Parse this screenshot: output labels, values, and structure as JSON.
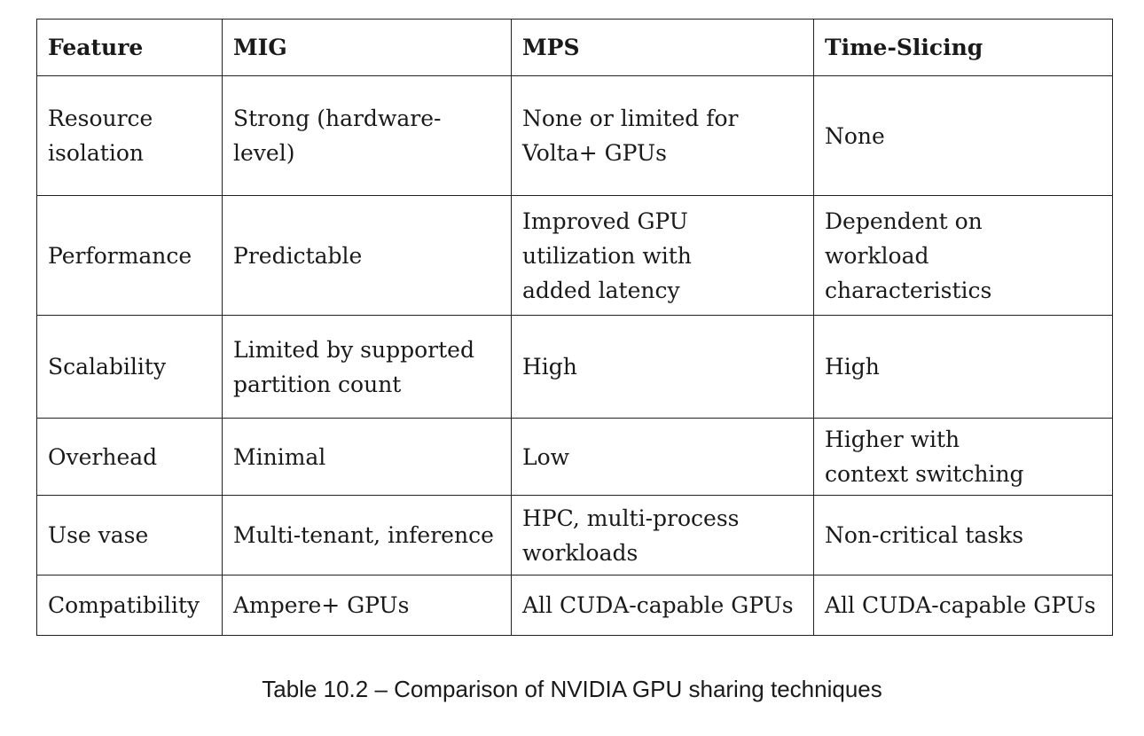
{
  "table": {
    "headers": [
      "Feature",
      "MIG",
      "MPS",
      "Time-Slicing"
    ],
    "rows": [
      [
        "Resource\nisolation",
        "Strong (hardware-level)",
        "None or limited for\nVolta+ GPUs",
        "None"
      ],
      [
        "Performance",
        "Predictable",
        "Improved GPU\nutilization with\nadded latency",
        "Dependent on\nworkload characteristics"
      ],
      [
        "Scalability",
        "Limited by supported\npartition count",
        "High",
        "High"
      ],
      [
        "Overhead",
        "Minimal",
        "Low",
        "Higher with\ncontext switching"
      ],
      [
        "Use vase",
        "Multi-tenant, inference",
        "HPC, multi-process\nworkloads",
        "Non-critical tasks"
      ],
      [
        "Compatibility",
        "Ampere+ GPUs",
        "All CUDA-capable GPUs",
        "All CUDA-capable GPUs"
      ]
    ]
  },
  "caption": "Table 10.2 – Comparison of NVIDIA GPU sharing techniques"
}
